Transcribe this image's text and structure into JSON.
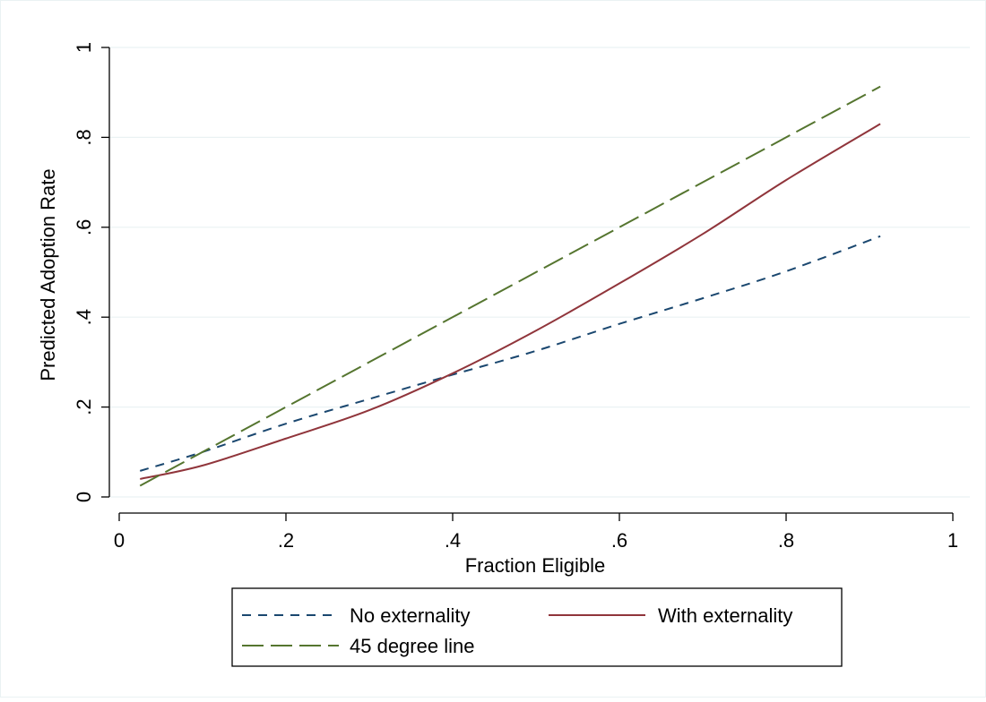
{
  "chart_data": {
    "type": "line",
    "title": "",
    "xlabel": "Fraction Eligible",
    "ylabel": "Predicted Adoption Rate",
    "xlim": [
      0,
      1
    ],
    "ylim": [
      0,
      1
    ],
    "x_ticks": [
      0,
      0.2,
      0.4,
      0.6,
      0.8,
      1
    ],
    "x_tick_labels": [
      "0",
      ".2",
      ".4",
      ".6",
      ".8",
      "1"
    ],
    "y_ticks": [
      0,
      0.2,
      0.4,
      0.6,
      0.8,
      1
    ],
    "y_tick_labels": [
      "0",
      ".2",
      ".4",
      ".6",
      ".8",
      "1"
    ],
    "grid": "horizontal",
    "legend_position": "bottom",
    "series": [
      {
        "name": "No externality",
        "color": "#1a476f",
        "dash": "short-dash",
        "points": [
          [
            0.025,
            0.058
          ],
          [
            0.1,
            0.1
          ],
          [
            0.2,
            0.163
          ],
          [
            0.3,
            0.218
          ],
          [
            0.4,
            0.272
          ],
          [
            0.5,
            0.325
          ],
          [
            0.6,
            0.385
          ],
          [
            0.7,
            0.442
          ],
          [
            0.8,
            0.502
          ],
          [
            0.913,
            0.58
          ]
        ]
      },
      {
        "name": "With externality",
        "color": "#90353b",
        "dash": "solid",
        "points": [
          [
            0.025,
            0.04
          ],
          [
            0.1,
            0.07
          ],
          [
            0.2,
            0.13
          ],
          [
            0.3,
            0.193
          ],
          [
            0.4,
            0.275
          ],
          [
            0.5,
            0.37
          ],
          [
            0.6,
            0.475
          ],
          [
            0.7,
            0.585
          ],
          [
            0.8,
            0.705
          ],
          [
            0.913,
            0.83
          ]
        ]
      },
      {
        "name": "45 degree line",
        "color": "#55752f",
        "dash": "long-dash",
        "points": [
          [
            0.025,
            0.025
          ],
          [
            0.913,
            0.913
          ]
        ]
      }
    ]
  }
}
